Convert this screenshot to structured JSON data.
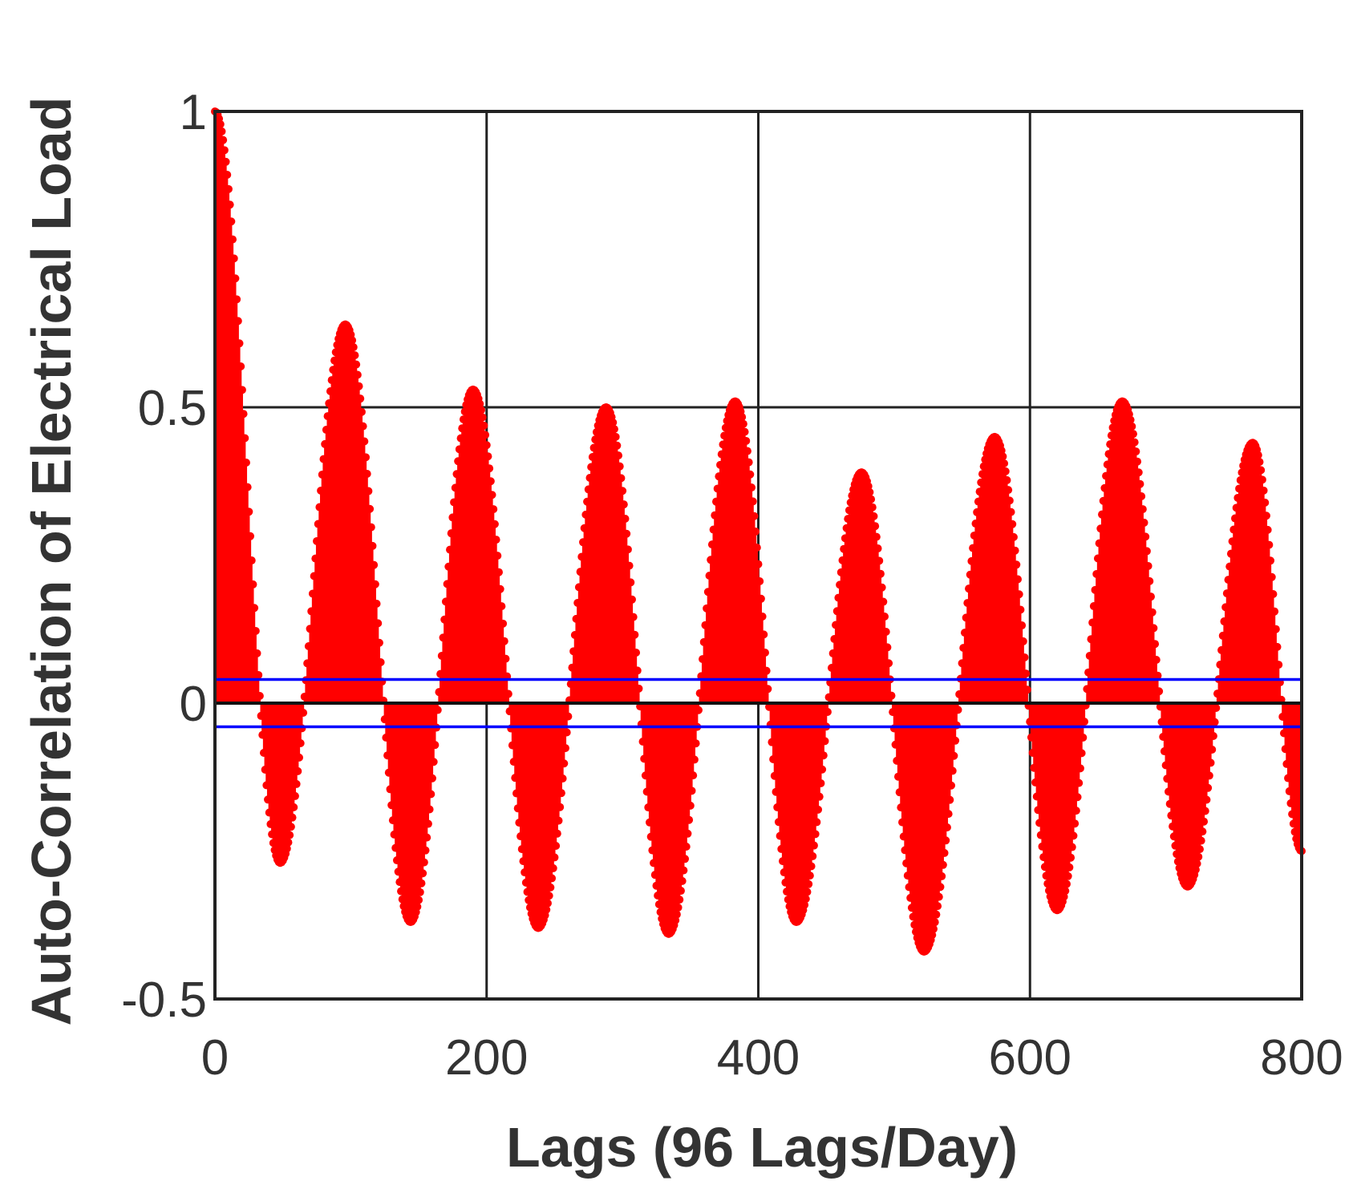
{
  "chart_data": {
    "type": "bar",
    "title": "",
    "xlabel": "Lags (96 Lags/Day)",
    "ylabel": "Auto-Correlation of Electrical Load",
    "xlim": [
      0,
      800
    ],
    "ylim": [
      -0.5,
      1
    ],
    "x_ticks": [
      "0",
      "200",
      "400",
      "600",
      "800"
    ],
    "y_ticks": [
      "-0.5",
      "0",
      "0.5",
      "1"
    ],
    "grid": true,
    "legend": "none",
    "series": [
      {
        "color": "#ff0000",
        "style": "stem",
        "lag_step": 1,
        "peaks": [
          {
            "lag": 0,
            "value": 1.0
          },
          {
            "lag": 48,
            "value": -0.27
          },
          {
            "lag": 96,
            "value": 0.64
          },
          {
            "lag": 144,
            "value": -0.37
          },
          {
            "lag": 190,
            "value": 0.53
          },
          {
            "lag": 238,
            "value": -0.38
          },
          {
            "lag": 288,
            "value": 0.5
          },
          {
            "lag": 334,
            "value": -0.39
          },
          {
            "lag": 383,
            "value": 0.51
          },
          {
            "lag": 428,
            "value": -0.37
          },
          {
            "lag": 476,
            "value": 0.39
          },
          {
            "lag": 522,
            "value": -0.42
          },
          {
            "lag": 574,
            "value": 0.45
          },
          {
            "lag": 620,
            "value": -0.35
          },
          {
            "lag": 668,
            "value": 0.51
          },
          {
            "lag": 716,
            "value": -0.31
          },
          {
            "lag": 764,
            "value": 0.44
          },
          {
            "lag": 800,
            "value": -0.25
          }
        ]
      }
    ],
    "confidence_bounds": {
      "upper": 0.04,
      "lower": -0.04,
      "color": "#0000ff"
    }
  }
}
